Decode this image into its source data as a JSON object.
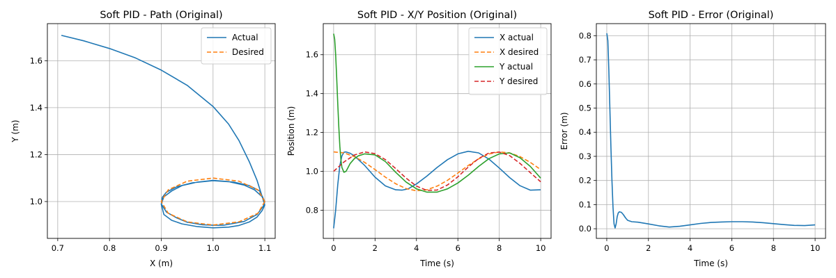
{
  "colors": {
    "c0": "#1f77b4",
    "c1": "#ff7f0e",
    "c2": "#2ca02c",
    "c3": "#d62728",
    "grid": "#b0b0b0"
  },
  "chart_data": [
    {
      "type": "line",
      "title": "Soft PID - Path (Original)",
      "xlabel": "X (m)",
      "ylabel": "Y (m)",
      "xlim": [
        0.68,
        1.12
      ],
      "ylim": [
        0.843,
        1.758
      ],
      "xticks": [
        0.7,
        0.8,
        0.9,
        1.0,
        1.1
      ],
      "xtick_labels": [
        "0.7",
        "0.8",
        "0.9",
        "1.0",
        "1.1"
      ],
      "yticks": [
        1.0,
        1.2,
        1.4,
        1.6
      ],
      "ytick_labels": [
        "1.0",
        "1.2",
        "1.4",
        "1.6"
      ],
      "grid": true,
      "legend": "top-right",
      "series": [
        {
          "name": "Actual",
          "color": "#1f77b4",
          "dash": "solid",
          "x": [
            0.707,
            0.75,
            0.8,
            0.85,
            0.9,
            0.95,
            1.0,
            1.03,
            1.05,
            1.07,
            1.085,
            1.095,
            1.1,
            1.095,
            1.085,
            1.07,
            1.05,
            1.03,
            1.0,
            0.97,
            0.94,
            0.92,
            0.905,
            0.9,
            0.902,
            0.91,
            0.93,
            0.96,
            1.0,
            1.04,
            1.07,
            1.09,
            1.1,
            1.097,
            1.085,
            1.06,
            1.02,
            1.0,
            0.98,
            0.95,
            0.93,
            0.91,
            0.9,
            0.905,
            0.92,
            0.94,
            0.97,
            1.0,
            1.03,
            1.06,
            1.08,
            1.095,
            1.098
          ],
          "y": [
            1.708,
            1.685,
            1.652,
            1.612,
            1.56,
            1.495,
            1.405,
            1.33,
            1.26,
            1.17,
            1.09,
            1.02,
            0.985,
            0.962,
            0.934,
            0.913,
            0.898,
            0.891,
            0.888,
            0.893,
            0.905,
            0.92,
            0.945,
            0.988,
            1.018,
            1.04,
            1.063,
            1.08,
            1.089,
            1.083,
            1.068,
            1.045,
            1.0,
            0.98,
            0.945,
            0.915,
            0.899,
            0.899,
            0.901,
            0.912,
            0.93,
            0.955,
            0.99,
            1.02,
            1.045,
            1.068,
            1.083,
            1.09,
            1.085,
            1.07,
            1.05,
            1.02,
            1.0
          ]
        },
        {
          "name": "Desired",
          "color": "#ff7f0e",
          "dash": "dashed",
          "x": [
            1.1,
            1.0866,
            1.05,
            1.0,
            0.95,
            0.9134,
            0.9,
            0.9134,
            0.95,
            1.0,
            1.05,
            1.0866,
            1.1
          ],
          "y": [
            1.0,
            1.05,
            1.0866,
            1.1,
            1.0866,
            1.05,
            1.0,
            0.95,
            0.9134,
            0.9,
            0.9134,
            0.95,
            1.0
          ]
        }
      ]
    },
    {
      "type": "line",
      "title": "Soft PID - X/Y Position (Original)",
      "xlabel": "Time (s)",
      "ylabel": "Position (m)",
      "xlim": [
        -0.5,
        10.5
      ],
      "ylim": [
        0.655,
        1.76
      ],
      "xticks": [
        0,
        2,
        4,
        6,
        8,
        10
      ],
      "xtick_labels": [
        "0",
        "2",
        "4",
        "6",
        "8",
        "10"
      ],
      "yticks": [
        0.8,
        1.0,
        1.2,
        1.4,
        1.6
      ],
      "ytick_labels": [
        "0.8",
        "1.0",
        "1.2",
        "1.4",
        "1.6"
      ],
      "grid": true,
      "legend": "top-right",
      "series": [
        {
          "name": "X actual",
          "color": "#1f77b4",
          "dash": "solid",
          "x": [
            0,
            0.1,
            0.2,
            0.3,
            0.4,
            0.5,
            0.6,
            0.8,
            1.0,
            1.5,
            2.0,
            2.5,
            3.0,
            3.3,
            3.6,
            4.0,
            4.5,
            5.0,
            5.5,
            6.0,
            6.5,
            7.0,
            7.5,
            8.0,
            8.5,
            9.0,
            9.5,
            10.0
          ],
          "y": [
            0.707,
            0.8,
            0.93,
            1.03,
            1.08,
            1.098,
            1.1,
            1.093,
            1.08,
            1.03,
            0.97,
            0.925,
            0.905,
            0.903,
            0.91,
            0.935,
            0.975,
            1.02,
            1.06,
            1.09,
            1.103,
            1.095,
            1.063,
            1.017,
            0.968,
            0.926,
            0.903,
            0.905
          ]
        },
        {
          "name": "X desired",
          "color": "#ff7f0e",
          "dash": "dashed",
          "x": [
            0,
            0.5,
            1.0,
            1.5,
            2.0,
            2.5,
            3.0,
            3.5,
            4.0,
            4.5,
            5.0,
            5.5,
            6.0,
            6.5,
            7.0,
            7.5,
            8.0,
            8.5,
            9.0,
            9.5,
            10.0
          ],
          "y": [
            1.1,
            1.095,
            1.076,
            1.046,
            1.009,
            0.97,
            0.936,
            0.911,
            0.9,
            0.905,
            0.924,
            0.954,
            0.991,
            1.03,
            1.064,
            1.089,
            1.1,
            1.095,
            1.076,
            1.046,
            1.009
          ]
        },
        {
          "name": "Y actual",
          "color": "#2ca02c",
          "dash": "solid",
          "x": [
            0,
            0.05,
            0.1,
            0.15,
            0.2,
            0.25,
            0.3,
            0.35,
            0.4,
            0.5,
            0.6,
            0.7,
            0.8,
            1.0,
            1.2,
            1.5,
            2.0,
            2.5,
            3.0,
            3.5,
            4.0,
            4.5,
            5.0,
            5.5,
            6.0,
            6.5,
            7.0,
            7.5,
            8.0,
            8.5,
            9.0,
            9.5,
            10.0
          ],
          "y": [
            1.708,
            1.68,
            1.6,
            1.48,
            1.35,
            1.23,
            1.13,
            1.06,
            1.02,
            0.995,
            1.0,
            1.02,
            1.04,
            1.065,
            1.08,
            1.09,
            1.085,
            1.05,
            0.995,
            0.945,
            0.91,
            0.893,
            0.893,
            0.91,
            0.94,
            0.98,
            1.025,
            1.065,
            1.09,
            1.095,
            1.07,
            1.025,
            0.965
          ]
        },
        {
          "name": "Y desired",
          "color": "#d62728",
          "dash": "dashed",
          "x": [
            0,
            0.5,
            1.0,
            1.5,
            2.0,
            2.5,
            3.0,
            3.5,
            4.0,
            4.5,
            5.0,
            5.5,
            6.0,
            6.5,
            7.0,
            7.5,
            8.0,
            8.5,
            9.0,
            9.5,
            10.0
          ],
          "y": [
            1.0,
            1.048,
            1.084,
            1.1,
            1.091,
            1.06,
            1.014,
            0.965,
            0.924,
            0.902,
            0.904,
            0.93,
            0.972,
            1.022,
            1.066,
            1.094,
            1.099,
            1.081,
            1.041,
            0.993,
            0.946
          ]
        }
      ]
    },
    {
      "type": "line",
      "title": "Soft PID - Error (Original)",
      "xlabel": "Time (s)",
      "ylabel": "Error (m)",
      "xlim": [
        -0.5,
        10.5
      ],
      "ylim": [
        -0.04,
        0.85
      ],
      "xticks": [
        0,
        2,
        4,
        6,
        8,
        10
      ],
      "xtick_labels": [
        "0",
        "2",
        "4",
        "6",
        "8",
        "10"
      ],
      "yticks": [
        0.0,
        0.1,
        0.2,
        0.3,
        0.4,
        0.5,
        0.6,
        0.7,
        0.8
      ],
      "ytick_labels": [
        "0.0",
        "0.1",
        "0.2",
        "0.3",
        "0.4",
        "0.5",
        "0.6",
        "0.7",
        "0.8"
      ],
      "grid": true,
      "series": [
        {
          "name": "",
          "color": "#1f77b4",
          "dash": "solid",
          "x": [
            0,
            0.05,
            0.1,
            0.15,
            0.2,
            0.25,
            0.3,
            0.35,
            0.4,
            0.45,
            0.5,
            0.55,
            0.6,
            0.7,
            0.8,
            0.9,
            1.0,
            1.2,
            1.5,
            2.0,
            2.5,
            3.0,
            3.5,
            4.0,
            4.5,
            5.0,
            5.5,
            6.0,
            6.5,
            7.0,
            7.5,
            8.0,
            8.5,
            9.0,
            9.5,
            10.0
          ],
          "y": [
            0.81,
            0.78,
            0.66,
            0.5,
            0.34,
            0.2,
            0.09,
            0.02,
            0.003,
            0.02,
            0.05,
            0.065,
            0.07,
            0.068,
            0.058,
            0.045,
            0.035,
            0.029,
            0.027,
            0.02,
            0.012,
            0.007,
            0.01,
            0.016,
            0.022,
            0.026,
            0.028,
            0.029,
            0.029,
            0.028,
            0.025,
            0.021,
            0.017,
            0.014,
            0.013,
            0.016
          ]
        }
      ]
    }
  ]
}
